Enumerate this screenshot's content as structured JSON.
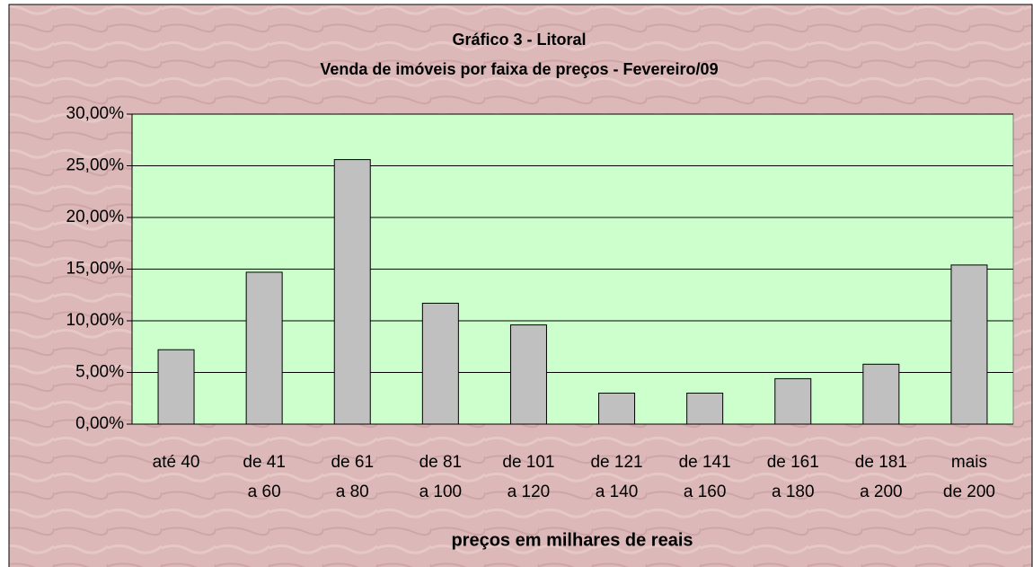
{
  "chart_data": {
    "type": "bar",
    "title": "Gráfico 3 - Litoral",
    "subtitle": "Venda de imóveis por faixa de preços - Fevereiro/09",
    "x_label": "preços em milhares de reais",
    "categories": [
      [
        "até 40"
      ],
      [
        "de 41",
        "a 60"
      ],
      [
        "de 61",
        "a 80"
      ],
      [
        "de 81",
        "a 100"
      ],
      [
        "de 101",
        "a 120"
      ],
      [
        "de 121",
        "a 140"
      ],
      [
        "de 141",
        "a 160"
      ],
      [
        "de 161",
        "a 180"
      ],
      [
        "de 181",
        "a 200"
      ],
      [
        "mais",
        "de 200"
      ]
    ],
    "values": [
      7.2,
      14.7,
      25.6,
      11.7,
      9.6,
      3.0,
      3.0,
      4.4,
      5.8,
      15.4
    ],
    "color": "#c0c0c0",
    "ylim": [
      0,
      30
    ],
    "yticks": [
      {
        "value": 0,
        "label": "0,00%"
      },
      {
        "value": 5,
        "label": "5,00%"
      },
      {
        "value": 10,
        "label": "10,00%"
      },
      {
        "value": 15,
        "label": "15,00%"
      },
      {
        "value": 20,
        "label": "20,00%"
      },
      {
        "value": 25,
        "label": "25,00%"
      },
      {
        "value": 30,
        "label": "30,00%"
      }
    ],
    "grid": true
  }
}
